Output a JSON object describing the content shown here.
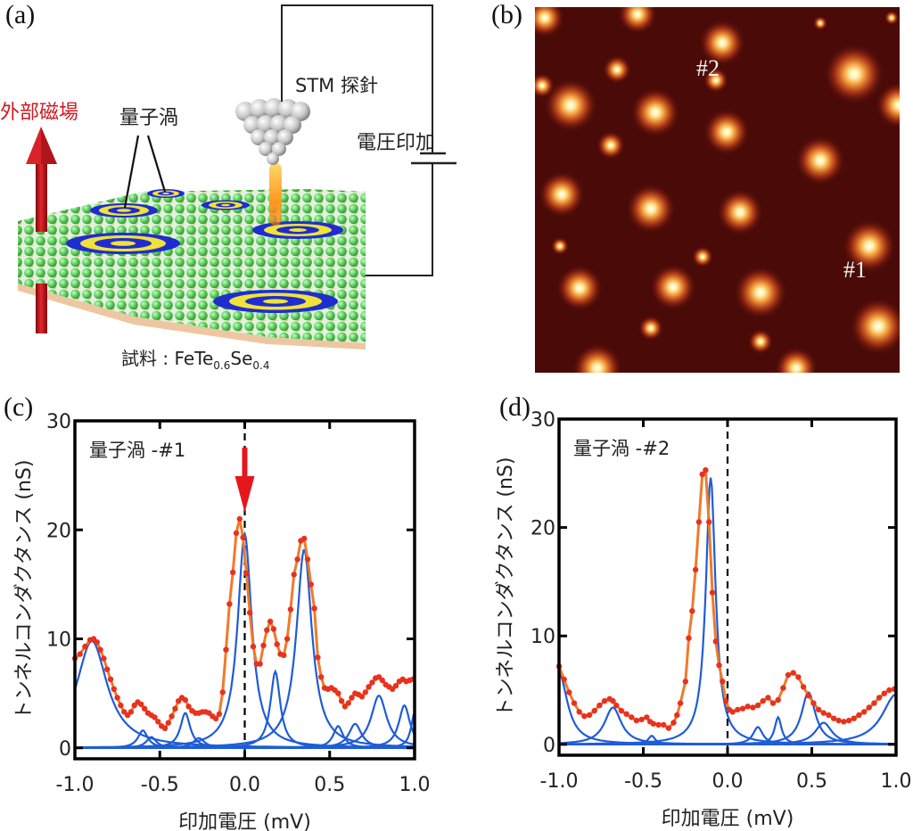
{
  "figure": {
    "panel_a": {
      "letter": "(a)",
      "field_label": "外部磁場",
      "vortex_label": "量子渦",
      "tip_label": "STM 探針",
      "voltage_label": "電圧印加",
      "sample_prefix": "試料 : FeTe",
      "sample_sub1": "0.6",
      "sample_mid": "Se",
      "sample_sub2": "0.4",
      "colors": {
        "field_arrow": "#c0161b",
        "lattice_top": "#5fd35f",
        "lattice_bottom": "#e9b98a",
        "vortex_ring_blue": "#1f2ccf",
        "vortex_ring_yellow": "#f0e23a"
      }
    },
    "panel_b": {
      "letter": "(b)",
      "labels": [
        "#2",
        "#1"
      ],
      "colors": {
        "background": "#4a0b08",
        "spot": "#fff2c0"
      }
    }
  },
  "chart_data": [
    {
      "panel": "(c)",
      "type": "line",
      "title": "",
      "annotation": "量子渦 -#1",
      "xlabel": "印加電圧 (mV)",
      "ylabel": "トンネルコンダクタンス (nS)",
      "xlim": [
        -1.0,
        1.0
      ],
      "ylim": [
        -1,
        30
      ],
      "xticks": [
        "-1.0",
        "-0.5",
        "0.0",
        "0.5",
        "1.0"
      ],
      "yticks": [
        "0",
        "10",
        "20",
        "30"
      ],
      "grid": false,
      "marker_arrow_at_x": 0.0,
      "series": [
        {
          "name": "measured",
          "style": "scatter",
          "color": "#e8321e",
          "x": [
            -1.0,
            -0.97,
            -0.94,
            -0.91,
            -0.89,
            -0.87,
            -0.85,
            -0.83,
            -0.81,
            -0.79,
            -0.77,
            -0.75,
            -0.73,
            -0.71,
            -0.69,
            -0.67,
            -0.65,
            -0.63,
            -0.61,
            -0.59,
            -0.57,
            -0.55,
            -0.53,
            -0.51,
            -0.49,
            -0.47,
            -0.45,
            -0.43,
            -0.41,
            -0.39,
            -0.37,
            -0.35,
            -0.33,
            -0.31,
            -0.29,
            -0.27,
            -0.25,
            -0.23,
            -0.21,
            -0.19,
            -0.17,
            -0.15,
            -0.13,
            -0.11,
            -0.09,
            -0.07,
            -0.05,
            -0.03,
            -0.01,
            0.01,
            0.03,
            0.05,
            0.07,
            0.09,
            0.11,
            0.13,
            0.15,
            0.17,
            0.19,
            0.21,
            0.23,
            0.25,
            0.27,
            0.29,
            0.31,
            0.33,
            0.35,
            0.37,
            0.39,
            0.41,
            0.43,
            0.45,
            0.47,
            0.49,
            0.51,
            0.53,
            0.55,
            0.57,
            0.59,
            0.61,
            0.63,
            0.65,
            0.67,
            0.69,
            0.71,
            0.73,
            0.75,
            0.77,
            0.79,
            0.81,
            0.83,
            0.85,
            0.87,
            0.89,
            0.91,
            0.93,
            0.95,
            0.97,
            0.99
          ],
          "y": [
            8.2,
            8.6,
            9.3,
            9.9,
            10.0,
            9.7,
            9.0,
            8.2,
            7.2,
            6.3,
            5.4,
            4.6,
            3.9,
            3.3,
            3.0,
            3.3,
            3.9,
            4.2,
            4.0,
            3.6,
            3.2,
            3.0,
            2.8,
            2.4,
            2.0,
            1.8,
            2.3,
            2.9,
            3.6,
            4.3,
            4.6,
            4.4,
            3.8,
            3.4,
            3.2,
            3.2,
            3.3,
            3.3,
            3.2,
            2.9,
            2.7,
            3.1,
            5.1,
            9.0,
            13.2,
            16.1,
            19.7,
            21.0,
            19.3,
            16.0,
            12.4,
            9.3,
            7.7,
            7.7,
            9.4,
            10.8,
            11.6,
            10.9,
            9.5,
            8.6,
            8.5,
            10.0,
            12.7,
            15.9,
            17.3,
            19.0,
            19.2,
            17.3,
            15.0,
            12.8,
            8.3,
            6.5,
            5.5,
            5.4,
            5.5,
            5.3,
            5.0,
            4.3,
            3.8,
            4.1,
            4.6,
            5.0,
            4.9,
            4.7,
            5.1,
            5.6,
            6.0,
            6.4,
            6.5,
            6.2,
            5.8,
            5.6,
            5.4,
            5.7,
            6.1,
            6.3,
            6.1,
            6.2,
            6.3
          ]
        },
        {
          "name": "fit",
          "style": "line",
          "color": "#f07a2a"
        },
        {
          "name": "lorentzian components",
          "style": "line",
          "color": "#1f5cd8",
          "peaks": [
            {
              "center": -0.9,
              "height": 9.8,
              "width": 0.22
            },
            {
              "center": -0.6,
              "height": 1.6,
              "width": 0.07
            },
            {
              "center": -0.55,
              "height": 1.0,
              "width": 0.07
            },
            {
              "center": -0.35,
              "height": 3.2,
              "width": 0.07
            },
            {
              "center": -0.27,
              "height": 0.9,
              "width": 0.08
            },
            {
              "center": 0.0,
              "height": 19.6,
              "width": 0.1
            },
            {
              "center": 0.18,
              "height": 7.0,
              "width": 0.07
            },
            {
              "center": 0.35,
              "height": 18.2,
              "width": 0.11
            },
            {
              "center": 0.55,
              "height": 2.0,
              "width": 0.07
            },
            {
              "center": 0.65,
              "height": 2.2,
              "width": 0.09
            },
            {
              "center": 0.79,
              "height": 4.8,
              "width": 0.11
            },
            {
              "center": 0.94,
              "height": 3.9,
              "width": 0.08
            },
            {
              "center": 1.0,
              "height": 3.2,
              "width": 0.05
            }
          ]
        },
        {
          "name": "zero baseline",
          "style": "dashed",
          "color": "#000000"
        }
      ]
    },
    {
      "panel": "(d)",
      "type": "line",
      "title": "",
      "annotation": "量子渦 -#2",
      "xlabel": "印加電圧 (mV)",
      "ylabel": "トンネルコンダクタンス (nS)",
      "xlim": [
        -1.0,
        1.0
      ],
      "ylim": [
        -1,
        30
      ],
      "xticks": [
        "-1.0",
        "-0.5",
        "0.0",
        "0.5",
        "1.0"
      ],
      "yticks": [
        "0",
        "10",
        "20",
        "30"
      ],
      "grid": false,
      "series": [
        {
          "name": "measured",
          "style": "scatter",
          "color": "#e8321e",
          "x": [
            -1.0,
            -0.97,
            -0.94,
            -0.91,
            -0.88,
            -0.85,
            -0.82,
            -0.79,
            -0.76,
            -0.73,
            -0.7,
            -0.68,
            -0.66,
            -0.63,
            -0.6,
            -0.57,
            -0.54,
            -0.51,
            -0.48,
            -0.46,
            -0.44,
            -0.41,
            -0.38,
            -0.35,
            -0.32,
            -0.3,
            -0.28,
            -0.25,
            -0.23,
            -0.21,
            -0.19,
            -0.17,
            -0.15,
            -0.13,
            -0.11,
            -0.09,
            -0.07,
            -0.05,
            -0.03,
            -0.01,
            0.01,
            0.03,
            0.06,
            0.09,
            0.12,
            0.15,
            0.18,
            0.21,
            0.24,
            0.27,
            0.3,
            0.33,
            0.36,
            0.39,
            0.42,
            0.45,
            0.48,
            0.51,
            0.54,
            0.57,
            0.6,
            0.63,
            0.66,
            0.69,
            0.72,
            0.75,
            0.78,
            0.81,
            0.84,
            0.87,
            0.9,
            0.93,
            0.96,
            0.99
          ],
          "y": [
            7.2,
            6.0,
            4.8,
            3.8,
            3.0,
            2.6,
            2.7,
            3.1,
            3.6,
            4.0,
            4.2,
            4.0,
            3.6,
            3.1,
            2.8,
            2.5,
            2.2,
            2.3,
            2.5,
            2.1,
            1.9,
            1.8,
            1.8,
            1.5,
            2.0,
            2.7,
            3.8,
            5.8,
            9.8,
            12.3,
            16.1,
            20.5,
            24.9,
            25.3,
            20.5,
            14.0,
            9.5,
            7.3,
            5.8,
            4.0,
            3.2,
            3.0,
            3.2,
            3.3,
            3.5,
            3.4,
            3.6,
            4.0,
            4.3,
            3.8,
            4.1,
            5.2,
            6.4,
            6.6,
            6.2,
            5.3,
            4.5,
            3.8,
            3.2,
            2.9,
            2.7,
            2.4,
            2.2,
            2.1,
            2.2,
            2.4,
            2.7,
            3.0,
            3.4,
            3.8,
            4.3,
            4.7,
            5.0,
            5.1
          ]
        },
        {
          "name": "fit",
          "style": "line",
          "color": "#f07a2a"
        },
        {
          "name": "lorentzian components",
          "style": "line",
          "color": "#1f5cd8",
          "peaks": [
            {
              "center": -1.0,
              "height": 6.6,
              "width": 0.12
            },
            {
              "center": -0.68,
              "height": 3.4,
              "width": 0.12
            },
            {
              "center": -0.45,
              "height": 0.8,
              "width": 0.05
            },
            {
              "center": -0.1,
              "height": 24.6,
              "width": 0.07
            },
            {
              "center": 0.18,
              "height": 1.6,
              "width": 0.07
            },
            {
              "center": 0.3,
              "height": 2.5,
              "width": 0.05
            },
            {
              "center": 0.48,
              "height": 4.8,
              "width": 0.1
            },
            {
              "center": 0.57,
              "height": 2.0,
              "width": 0.12
            },
            {
              "center": 1.0,
              "height": 4.6,
              "width": 0.2
            }
          ]
        },
        {
          "name": "zero baseline",
          "style": "dashed",
          "color": "#000000"
        }
      ]
    }
  ],
  "panel_letters": {
    "c": "(c)",
    "d": "(d)"
  }
}
